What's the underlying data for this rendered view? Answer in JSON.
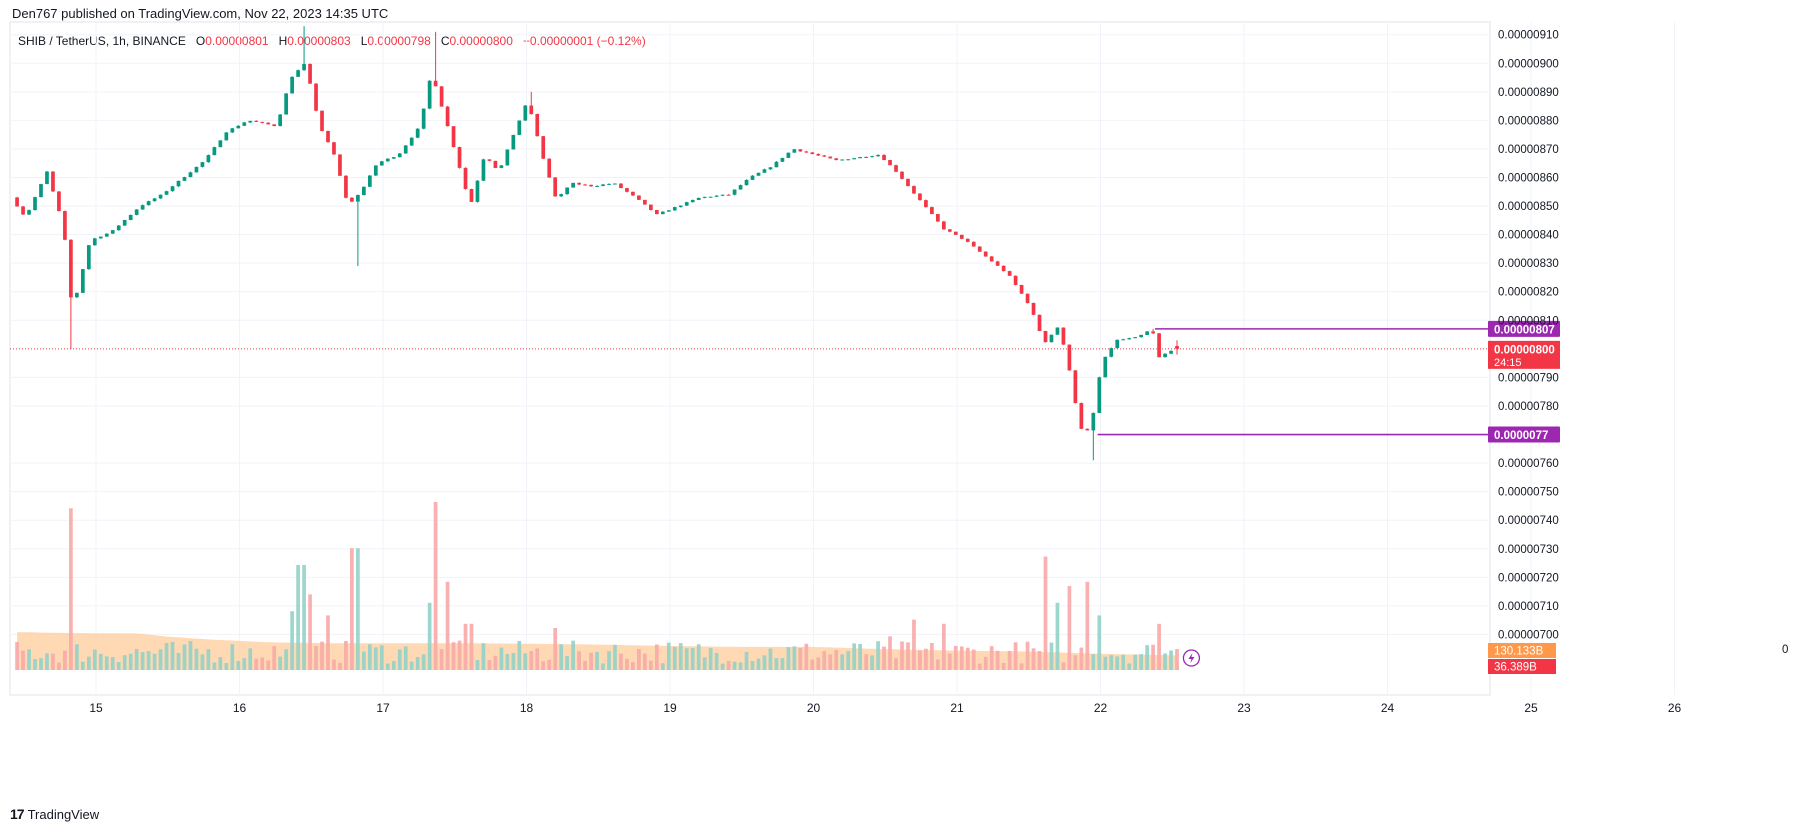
{
  "publisher_line": "Den767 published on TradingView.com, Nov 22, 2023 14:35 UTC",
  "legend": {
    "symbol": "SHIB / TetherUS, 1h, BINANCE",
    "o_label": "O",
    "o_value": "0.00000801",
    "h_label": "H",
    "h_value": "0.00000803",
    "l_label": "L",
    "l_value": "0.00000798",
    "c_label": "C",
    "c_value": "0.00000800",
    "change": "−0.00000001 (−0.12%)"
  },
  "footer": {
    "logo_glyph": "17",
    "brand": "TradingView"
  },
  "colors": {
    "up": "#089981",
    "down": "#f23645",
    "up_volume": "#92d2c8",
    "down_volume": "#f7a9a7",
    "volume_ma_fill": "#ffcc99",
    "level_line": "#9c27b0",
    "grid": "#f0f3fa",
    "axis_text": "#131722",
    "last_price": "#f23645",
    "volume_label_ma": "#ff9849"
  },
  "chart_data": {
    "type": "candlestick",
    "symbol": "SHIB / TetherUS",
    "interval": "1h",
    "exchange": "BINANCE",
    "x_tick_labels": [
      "15",
      "16",
      "17",
      "18",
      "19",
      "20",
      "21",
      "22",
      "23",
      "24",
      "25",
      "26"
    ],
    "y_tick_labels": [
      "0.00000910",
      "0.00000900",
      "0.00000890",
      "0.00000880",
      "0.00000870",
      "0.00000860",
      "0.00000850",
      "0.00000840",
      "0.00000830",
      "0.00000820",
      "0.00000810",
      "0.00000790",
      "0.00000780",
      "0.00000760",
      "0.00000750",
      "0.00000740",
      "0.00000730",
      "0.00000720",
      "0.00000710",
      "0.00000700"
    ],
    "x_range_day": [
      14.45,
      26.2
    ],
    "ylim": [
      6.935e-06,
      9.113e-06
    ],
    "grid": true,
    "last_price_label": "0.00000800",
    "countdown": "24:15",
    "volume_ma_label": "130.133B",
    "volume_label": "36.389B",
    "horizontal_levels": [
      {
        "price": 8.07e-06,
        "label": "0.00000807",
        "from_day": 22.38
      },
      {
        "price": 7.7e-06,
        "label": "0.0000077",
        "from_day": 21.98
      }
    ],
    "axis_partial_label": "0",
    "price_anchors_day_close": [
      [
        14.45,
        8.53e-06
      ],
      [
        14.55,
        8.46e-06
      ],
      [
        14.7,
        8.62e-06
      ],
      [
        14.82,
        8.42e-06
      ],
      [
        14.85,
        8.18e-06
      ],
      [
        14.9,
        8.18e-06
      ],
      [
        15.0,
        8.38e-06
      ],
      [
        15.15,
        8.41e-06
      ],
      [
        15.35,
        8.5e-06
      ],
      [
        15.5,
        8.54e-06
      ],
      [
        15.65,
        8.6e-06
      ],
      [
        15.8,
        8.66e-06
      ],
      [
        15.95,
        8.76e-06
      ],
      [
        16.1,
        8.8e-06
      ],
      [
        16.3,
        8.78e-06
      ],
      [
        16.4,
        8.95e-06
      ],
      [
        16.5,
        9e-06
      ],
      [
        16.6,
        8.78e-06
      ],
      [
        16.7,
        8.68e-06
      ],
      [
        16.8,
        8.5e-06
      ],
      [
        16.9,
        8.56e-06
      ],
      [
        17.0,
        8.65e-06
      ],
      [
        17.15,
        8.68e-06
      ],
      [
        17.3,
        8.78e-06
      ],
      [
        17.38,
        8.97e-06
      ],
      [
        17.45,
        8.85e-06
      ],
      [
        17.55,
        8.68e-06
      ],
      [
        17.65,
        8.5e-06
      ],
      [
        17.75,
        8.68e-06
      ],
      [
        17.85,
        8.62e-06
      ],
      [
        17.95,
        8.75e-06
      ],
      [
        18.05,
        8.87e-06
      ],
      [
        18.15,
        8.68e-06
      ],
      [
        18.25,
        8.52e-06
      ],
      [
        18.35,
        8.58e-06
      ],
      [
        18.5,
        8.57e-06
      ],
      [
        18.65,
        8.58e-06
      ],
      [
        18.8,
        8.53e-06
      ],
      [
        18.95,
        8.47e-06
      ],
      [
        19.1,
        8.5e-06
      ],
      [
        19.25,
        8.53e-06
      ],
      [
        19.45,
        8.54e-06
      ],
      [
        19.6,
        8.6e-06
      ],
      [
        19.75,
        8.64e-06
      ],
      [
        19.9,
        8.7e-06
      ],
      [
        20.05,
        8.68e-06
      ],
      [
        20.2,
        8.66e-06
      ],
      [
        20.35,
        8.67e-06
      ],
      [
        20.5,
        8.68e-06
      ],
      [
        20.62,
        8.62e-06
      ],
      [
        20.75,
        8.54e-06
      ],
      [
        20.85,
        8.48e-06
      ],
      [
        20.95,
        8.42e-06
      ],
      [
        21.1,
        8.38e-06
      ],
      [
        21.25,
        8.32e-06
      ],
      [
        21.4,
        8.26e-06
      ],
      [
        21.55,
        8.15e-06
      ],
      [
        21.65,
        8.02e-06
      ],
      [
        21.75,
        8.08e-06
      ],
      [
        21.82,
        7.94e-06
      ],
      [
        21.9,
        7.72e-06
      ],
      [
        21.97,
        7.71e-06
      ],
      [
        22.05,
        7.95e-06
      ],
      [
        22.15,
        8.03e-06
      ],
      [
        22.3,
        8.04e-06
      ],
      [
        22.4,
        8.07e-06
      ],
      [
        22.45,
        7.97e-06
      ],
      [
        22.55,
        8e-06
      ]
    ],
    "volume_ma_anchors_day": [
      [
        14.45,
        0.82
      ],
      [
        14.8,
        0.8
      ],
      [
        15.3,
        0.79
      ],
      [
        15.5,
        0.72
      ],
      [
        15.8,
        0.66
      ],
      [
        16.2,
        0.6
      ],
      [
        16.6,
        0.58
      ],
      [
        17.0,
        0.58
      ],
      [
        17.5,
        0.58
      ],
      [
        18.0,
        0.57
      ],
      [
        18.5,
        0.55
      ],
      [
        19.0,
        0.52
      ],
      [
        19.5,
        0.5
      ],
      [
        20.0,
        0.5
      ],
      [
        20.5,
        0.45
      ],
      [
        21.0,
        0.42
      ],
      [
        21.5,
        0.4
      ],
      [
        22.0,
        0.35
      ],
      [
        22.5,
        0.32
      ]
    ],
    "volume_spikes_day": [
      [
        14.82,
        3.85,
        "down"
      ],
      [
        16.35,
        1.4,
        "up"
      ],
      [
        16.43,
        2.5,
        "down"
      ],
      [
        16.5,
        1.8,
        "down"
      ],
      [
        16.6,
        1.3,
        "down"
      ],
      [
        16.8,
        2.9,
        "down"
      ],
      [
        17.35,
        1.6,
        "up"
      ],
      [
        17.38,
        4.0,
        "up"
      ],
      [
        17.45,
        2.1,
        "down"
      ],
      [
        17.6,
        1.1,
        "down"
      ],
      [
        18.2,
        1.0,
        "up"
      ],
      [
        20.55,
        0.8,
        "up"
      ],
      [
        20.7,
        1.2,
        "up"
      ],
      [
        20.9,
        1.1,
        "down"
      ],
      [
        21.62,
        2.7,
        "up"
      ],
      [
        21.7,
        1.6,
        "down"
      ],
      [
        21.78,
        2.0,
        "down"
      ],
      [
        21.92,
        2.1,
        "down"
      ],
      [
        22.0,
        1.3,
        "up"
      ],
      [
        22.42,
        1.1,
        "down"
      ]
    ]
  }
}
